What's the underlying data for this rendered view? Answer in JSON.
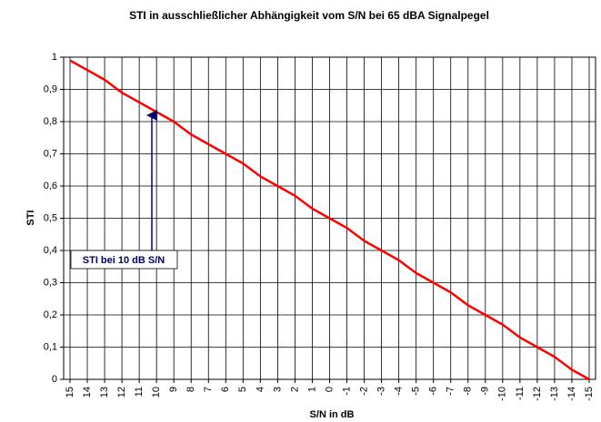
{
  "chart_data": {
    "type": "line",
    "title": "STI in ausschließlicher Abhängigkeit vom S/N bei 65 dBA Signalpegel",
    "x_label": "S/N in dB",
    "y_label": "STI",
    "categories": [
      "15",
      "14",
      "13",
      "12",
      "11",
      "10",
      "9",
      "8",
      "7",
      "6",
      "5",
      "4",
      "3",
      "2",
      "1",
      "0",
      "-1",
      "-2",
      "-3",
      "-4",
      "-5",
      "-6",
      "-7",
      "-8",
      "-9",
      "-10",
      "-11",
      "-12",
      "-13",
      "-14",
      "-15"
    ],
    "series": [
      {
        "name": "STI",
        "color": "#ff0000",
        "values": [
          0.99,
          0.96,
          0.93,
          0.89,
          0.86,
          0.83,
          0.8,
          0.76,
          0.73,
          0.7,
          0.67,
          0.63,
          0.6,
          0.57,
          0.53,
          0.5,
          0.47,
          0.43,
          0.4,
          0.37,
          0.33,
          0.3,
          0.27,
          0.23,
          0.2,
          0.17,
          0.13,
          0.1,
          0.07,
          0.03,
          0.0
        ]
      }
    ],
    "ylim": [
      0,
      1
    ],
    "yticks": [
      0,
      {
        "value": 0.1,
        "label": "0,1"
      },
      {
        "value": 0.2,
        "label": "0,2"
      },
      {
        "value": 0.3,
        "label": "0,3"
      },
      {
        "value": 0.4,
        "label": "0,4"
      },
      {
        "value": 0.5,
        "label": "0,5"
      },
      {
        "value": 0.6,
        "label": "0,6"
      },
      {
        "value": 0.7,
        "label": "0,7"
      },
      {
        "value": 0.8,
        "label": "0,8"
      },
      {
        "value": 0.9,
        "label": "0,9"
      },
      1
    ],
    "grid": true,
    "annotation": "STI bei 10 dB S/N"
  }
}
